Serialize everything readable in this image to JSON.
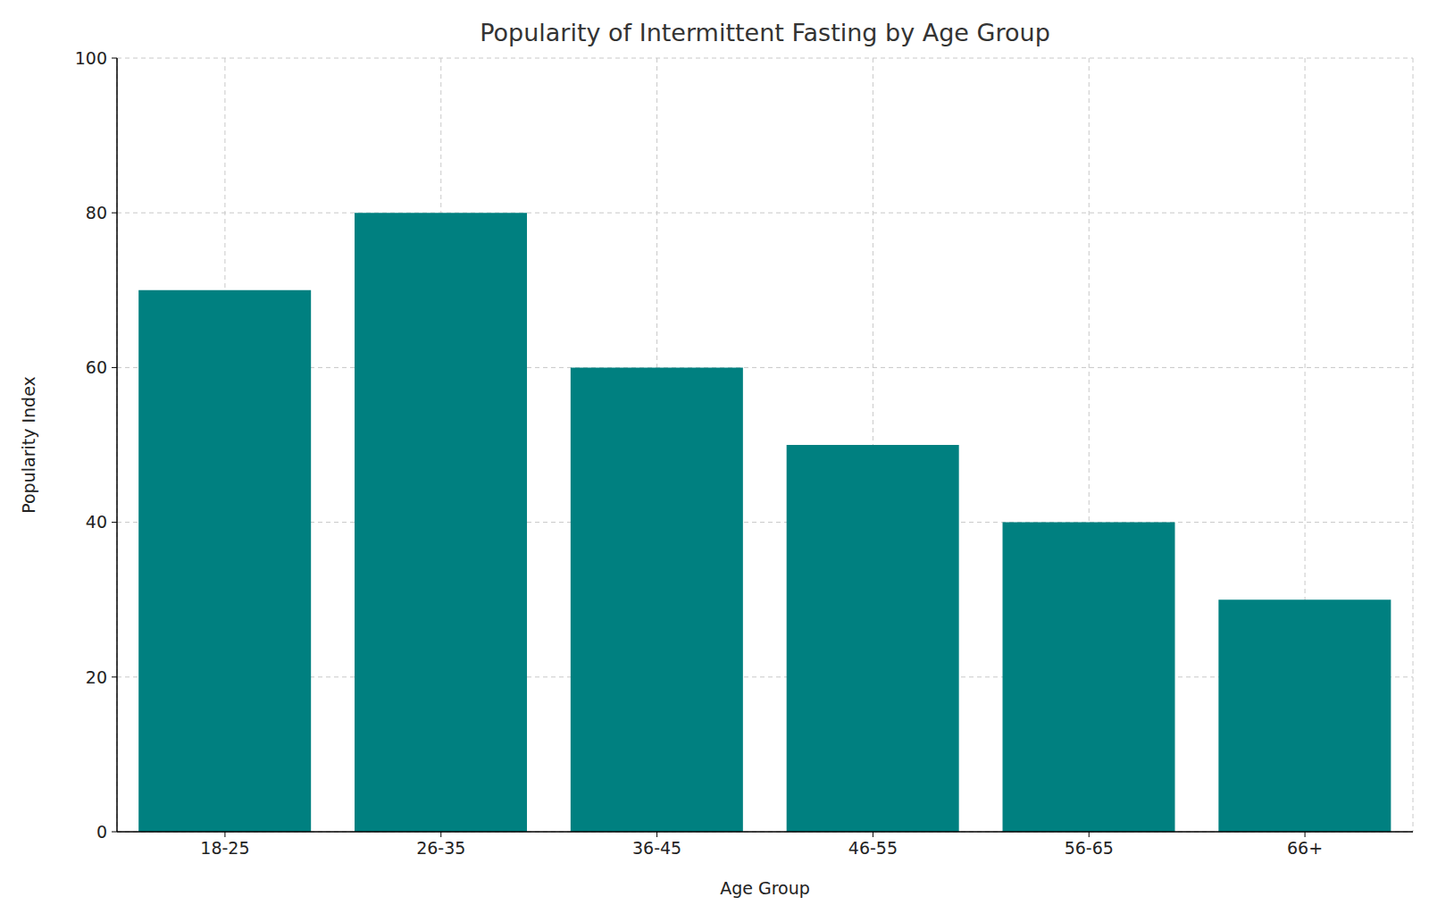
{
  "chart_data": {
    "type": "bar",
    "title": "Popularity of Intermittent Fasting by Age Group",
    "x_label": "Age Group",
    "y_label": "Popularity Index",
    "categories": [
      "18-25",
      "26-35",
      "36-45",
      "46-55",
      "56-65",
      "66+"
    ],
    "values": [
      70,
      80,
      60,
      50,
      40,
      30
    ],
    "color": "#008080",
    "ylim": [
      0,
      100
    ],
    "yticks": [
      0,
      20,
      40,
      60,
      80,
      100
    ],
    "grid": true
  }
}
